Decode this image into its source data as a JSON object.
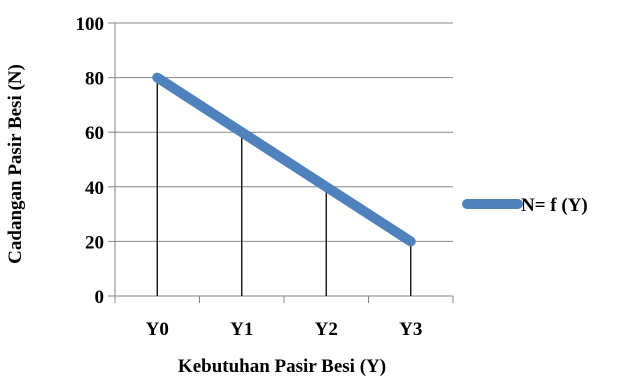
{
  "chart_data": {
    "type": "line",
    "categories": [
      "Y0",
      "Y1",
      "Y2",
      "Y3"
    ],
    "series": [
      {
        "name": "N= f (Y)",
        "values": [
          80,
          60,
          40,
          20
        ],
        "color": "#4f81bd"
      }
    ],
    "ylabel": "Cadangan Pasir Besi (N)",
    "xlabel": "Kebutuhan Pasir Besi (Y)",
    "ylim": [
      0,
      100
    ],
    "yticks": [
      0,
      20,
      40,
      60,
      80,
      100
    ],
    "grid": true,
    "drop_lines": true,
    "legend_position": "right",
    "colors": {
      "gridline": "#868686",
      "axis": "#868686",
      "drop_line": "#000000"
    }
  }
}
